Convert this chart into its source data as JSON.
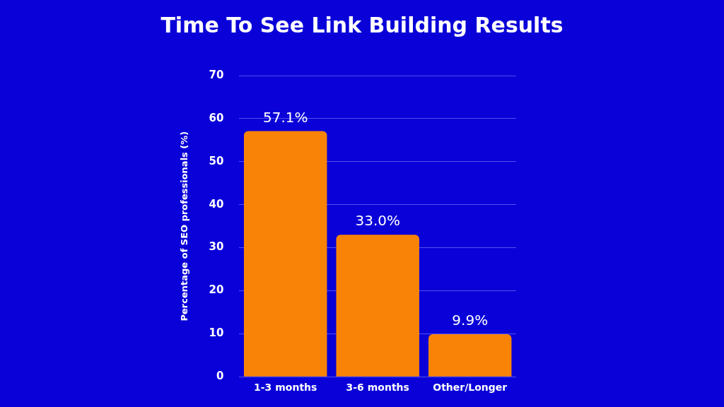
{
  "chart_data": {
    "type": "bar",
    "title": "Time To See Link Building Results",
    "ylabel": "Percentage of SEO professionals (%)",
    "categories": [
      "1-3 months",
      "3-6 months",
      "Other/Longer"
    ],
    "values": [
      57.1,
      33.0,
      9.9
    ],
    "value_labels": [
      "57.1%",
      "33.0%",
      "9.9%"
    ],
    "color": "#f98307",
    "ylim": [
      0,
      70
    ],
    "yticks": [
      0,
      10,
      20,
      30,
      40,
      50,
      60,
      70
    ],
    "grid": "y"
  }
}
